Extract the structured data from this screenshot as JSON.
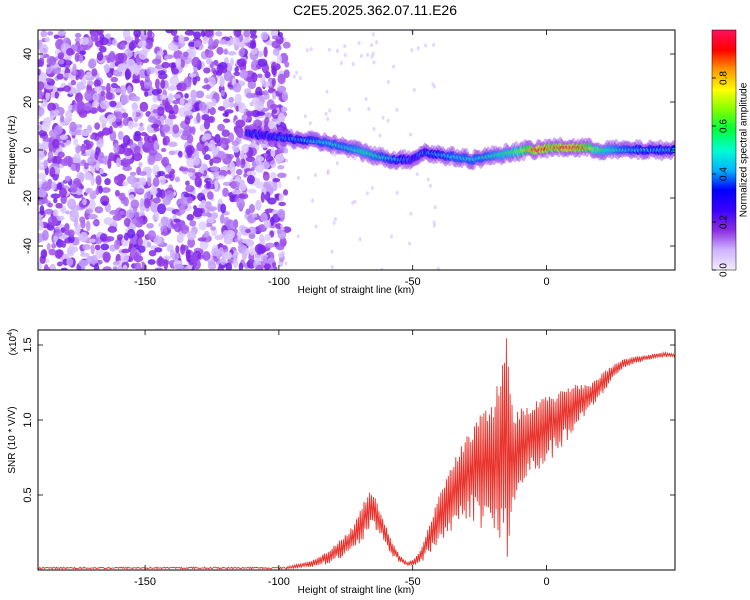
{
  "title": "C2E5.2025.362.07.11.E26",
  "chart_data": [
    {
      "type": "heatmap",
      "name": "spectrogram",
      "xlabel": "Height of straight line (km)",
      "ylabel": "Frequency (Hz)",
      "xlim": [
        -190,
        48
      ],
      "ylim": [
        -50,
        50
      ],
      "xticks": [
        -150,
        -100,
        -50,
        0
      ],
      "yticks": [
        -40,
        -20,
        0,
        20,
        40
      ],
      "colorbar": {
        "label": "Normalized spectral amplitude",
        "range": [
          0,
          1
        ],
        "ticks": [
          0.0,
          0.2,
          0.4,
          0.6,
          0.8
        ],
        "tick_labels": [
          "0.0",
          "0.2",
          "0.4",
          "0.6",
          "0.8"
        ],
        "colors": [
          "#f4ecff",
          "#cfb4ff",
          "#8a2be2",
          "#3a00ff",
          "#0000ff",
          "#00b4ff",
          "#00ffd0",
          "#00ff40",
          "#7fff00",
          "#ffff00",
          "#ff9900",
          "#ff0000",
          "#ff1060"
        ]
      },
      "noise_region_x": [
        -190,
        -100
      ],
      "trace": {
        "x": [
          -112,
          -105,
          -98,
          -90,
          -82,
          -75,
          -68,
          -62,
          -56,
          -51,
          -46,
          -40,
          -34,
          -28,
          -23,
          -18,
          -13,
          -8,
          -3,
          2,
          8,
          14,
          20,
          28,
          36,
          44,
          48
        ],
        "freq": [
          7,
          6,
          5,
          4,
          3,
          1,
          -1,
          -3,
          -4,
          -4,
          -1,
          -2,
          -3,
          -4,
          -3,
          -2,
          -1,
          0,
          0,
          1,
          1,
          1,
          0,
          0,
          0,
          0,
          0
        ],
        "amplitude": [
          0.35,
          0.35,
          0.4,
          0.45,
          0.5,
          0.5,
          0.55,
          0.5,
          0.45,
          0.35,
          0.4,
          0.45,
          0.5,
          0.5,
          0.5,
          0.55,
          0.6,
          0.75,
          0.95,
          0.85,
          0.95,
          0.85,
          0.6,
          0.5,
          0.45,
          0.45,
          0.45
        ]
      }
    },
    {
      "type": "line",
      "name": "snr",
      "xlabel": "Height of straight line (km)",
      "ylabel": "SNR (10 * V/V)",
      "y_multiplier_label": "(x10",
      "y_multiplier_exp": "4",
      "y_multiplier_close": ")",
      "xlim": [
        -190,
        48
      ],
      "ylim": [
        0,
        1.6
      ],
      "xticks": [
        -150,
        -100,
        -50,
        0
      ],
      "yticks": [
        0.5,
        1.0,
        1.5
      ],
      "ytick_labels": [
        "0.5",
        "1.0",
        "1.5"
      ],
      "color": "#e8322b",
      "series": [
        {
          "name": "SNR",
          "x": [
            -190,
            -150,
            -120,
            -100,
            -95,
            -88,
            -82,
            -76,
            -72,
            -69,
            -66,
            -64,
            -61,
            -58,
            -55,
            -52,
            -49,
            -46,
            -44,
            -41,
            -38,
            -35,
            -32,
            -29,
            -26,
            -23,
            -20,
            -17,
            -15,
            -14,
            -12,
            -9,
            -6,
            -3,
            0,
            4,
            8,
            12,
            16,
            20,
            24,
            28,
            32,
            36,
            40,
            44,
            48
          ],
          "envelope": [
            0.01,
            0.01,
            0.01,
            0.01,
            0.03,
            0.06,
            0.12,
            0.22,
            0.3,
            0.42,
            0.55,
            0.48,
            0.35,
            0.2,
            0.1,
            0.05,
            0.08,
            0.18,
            0.3,
            0.45,
            0.6,
            0.72,
            0.82,
            0.92,
            1.0,
            1.08,
            1.15,
            1.32,
            1.58,
            1.3,
            1.05,
            1.1,
            1.12,
            1.15,
            1.2,
            1.18,
            1.22,
            1.25,
            1.24,
            1.3,
            1.36,
            1.4,
            1.42,
            1.43,
            1.44,
            1.45,
            1.44
          ],
          "trough": [
            0.0,
            0.0,
            0.0,
            0.0,
            0.01,
            0.02,
            0.04,
            0.08,
            0.12,
            0.18,
            0.28,
            0.25,
            0.18,
            0.1,
            0.05,
            0.03,
            0.03,
            0.06,
            0.1,
            0.15,
            0.2,
            0.25,
            0.3,
            0.35,
            0.3,
            0.25,
            0.2,
            0.1,
            0.05,
            0.12,
            0.35,
            0.55,
            0.6,
            0.65,
            0.7,
            0.78,
            0.85,
            0.95,
            1.05,
            1.15,
            1.25,
            1.33,
            1.37,
            1.39,
            1.41,
            1.42,
            1.42
          ]
        }
      ]
    }
  ]
}
